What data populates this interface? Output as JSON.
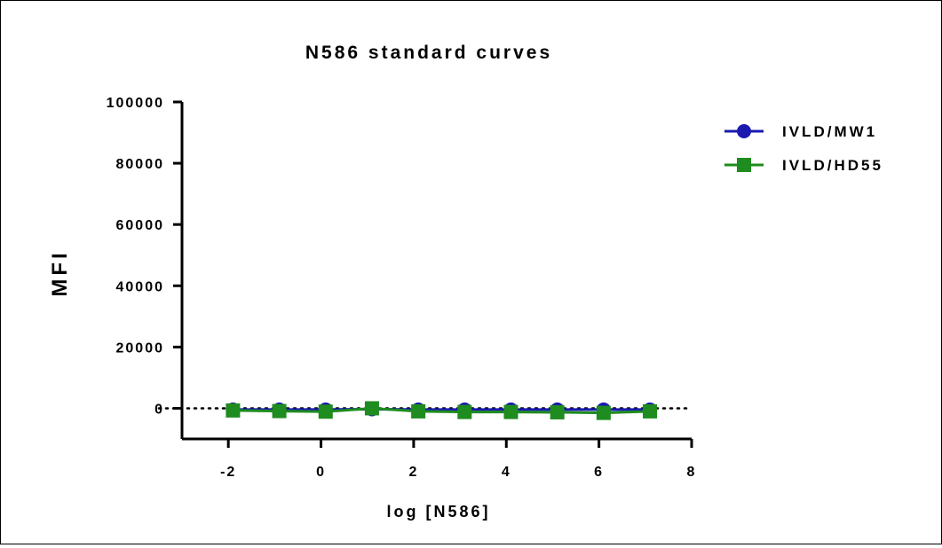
{
  "chart_data": {
    "type": "line",
    "title": "N586 standard curves",
    "xlabel": "log [N586]",
    "ylabel": "MFI",
    "xlim": [
      -3,
      8
    ],
    "ylim": [
      -10000,
      100000
    ],
    "x_ticks": [
      "-2",
      "0",
      "2",
      "4",
      "6",
      "8"
    ],
    "y_ticks": [
      "0",
      "20000",
      "40000",
      "60000",
      "80000",
      "100000"
    ],
    "reference_line": {
      "y": 0,
      "style": "dotted"
    },
    "legend_position": "top-right",
    "series": [
      {
        "name": "IVLD/MW1",
        "color": "#1a1ab0",
        "marker": "circle",
        "x": [
          -1.9,
          -0.9,
          0.1,
          1.1,
          2.1,
          3.1,
          4.1,
          5.1,
          6.1,
          7.1
        ],
        "y": [
          -400,
          -400,
          -400,
          -300,
          -400,
          -400,
          -400,
          -400,
          -400,
          -400
        ]
      },
      {
        "name": "IVLD/HD55",
        "color": "#1e8c1e",
        "marker": "square",
        "x": [
          -1.9,
          -0.9,
          0.1,
          1.1,
          2.1,
          3.1,
          4.1,
          5.1,
          6.1,
          7.1
        ],
        "y": [
          -700,
          -900,
          -1100,
          0,
          -1000,
          -1200,
          -1200,
          -1300,
          -1500,
          -1000
        ]
      }
    ]
  }
}
